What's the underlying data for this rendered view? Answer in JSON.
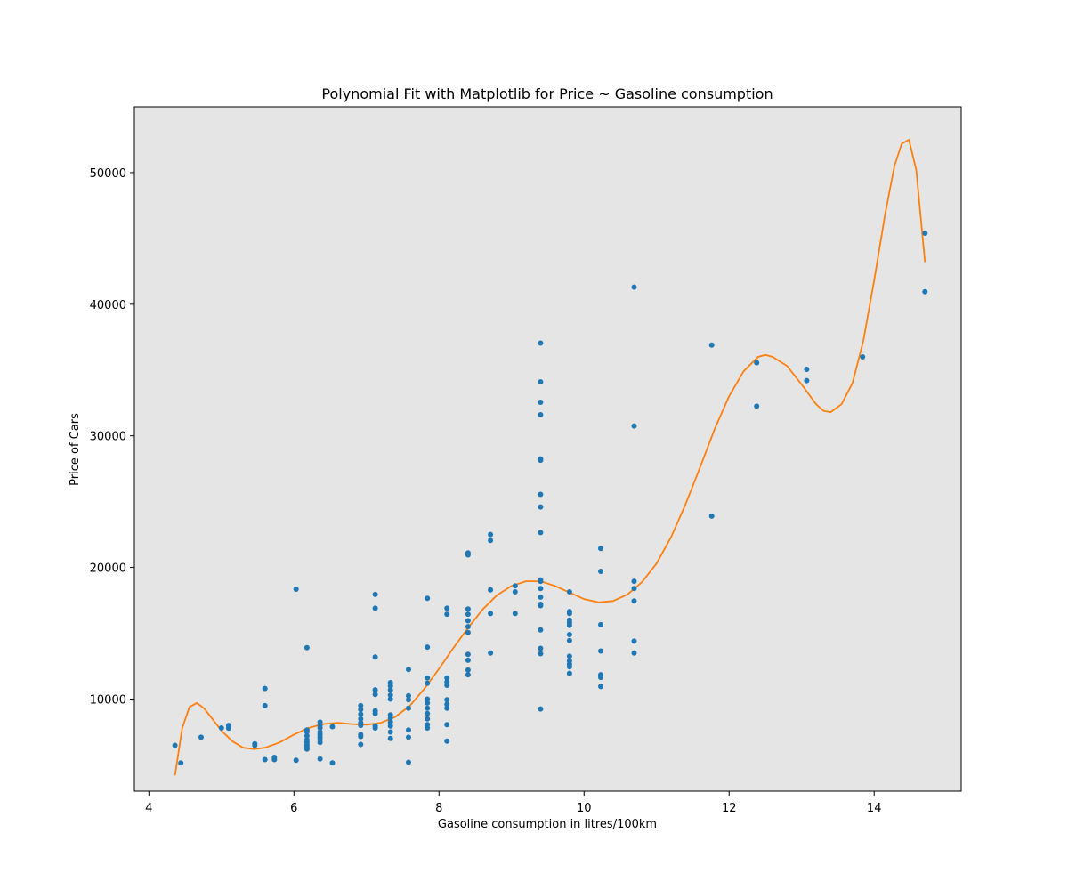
{
  "chart_data": {
    "type": "scatter",
    "title": "Polynomial Fit with Matplotlib for Price ~ Gasoline consumption",
    "xlabel": "Gasoline consumption in litres/100km",
    "ylabel": "Price of Cars",
    "xlim": [
      3.8,
      15.2
    ],
    "ylim": [
      3000,
      55000
    ],
    "xticks": [
      4,
      6,
      8,
      10,
      12,
      14
    ],
    "yticks": [
      10000,
      20000,
      30000,
      40000,
      50000
    ],
    "xtick_labels": [
      "4",
      "6",
      "8",
      "10",
      "12",
      "14"
    ],
    "ytick_labels": [
      "10000",
      "20000",
      "30000",
      "40000",
      "50000"
    ],
    "background": "#e5e5e5",
    "grid": false,
    "legend": "none",
    "series": [
      {
        "kind": "scatter",
        "color": "#1f77b4",
        "points": [
          [
            4.36,
            6480
          ],
          [
            4.44,
            5150
          ],
          [
            4.72,
            7100
          ],
          [
            5.0,
            7800
          ],
          [
            5.1,
            7780
          ],
          [
            5.1,
            8000
          ],
          [
            5.46,
            6480
          ],
          [
            5.46,
            6600
          ],
          [
            5.6,
            5400
          ],
          [
            5.6,
            9500
          ],
          [
            5.6,
            10800
          ],
          [
            5.73,
            5400
          ],
          [
            5.73,
            5570
          ],
          [
            6.03,
            5350
          ],
          [
            6.03,
            18350
          ],
          [
            6.18,
            6200
          ],
          [
            6.18,
            6330
          ],
          [
            6.18,
            6500
          ],
          [
            6.18,
            6700
          ],
          [
            6.18,
            6900
          ],
          [
            6.18,
            7200
          ],
          [
            6.18,
            7500
          ],
          [
            6.18,
            7650
          ],
          [
            6.18,
            13900
          ],
          [
            6.36,
            5450
          ],
          [
            6.36,
            6700
          ],
          [
            6.36,
            6900
          ],
          [
            6.36,
            7100
          ],
          [
            6.36,
            7300
          ],
          [
            6.36,
            7500
          ],
          [
            6.36,
            7800
          ],
          [
            6.36,
            8000
          ],
          [
            6.36,
            8250
          ],
          [
            6.53,
            5150
          ],
          [
            6.53,
            7900
          ],
          [
            6.92,
            6550
          ],
          [
            6.92,
            7150
          ],
          [
            6.92,
            7300
          ],
          [
            6.92,
            8000
          ],
          [
            6.92,
            8200
          ],
          [
            6.92,
            8500
          ],
          [
            6.92,
            8850
          ],
          [
            6.92,
            9200
          ],
          [
            6.92,
            9500
          ],
          [
            7.12,
            7800
          ],
          [
            7.12,
            7950
          ],
          [
            7.12,
            8900
          ],
          [
            7.12,
            9100
          ],
          [
            7.12,
            10350
          ],
          [
            7.12,
            10700
          ],
          [
            7.12,
            13200
          ],
          [
            7.12,
            16900
          ],
          [
            7.12,
            17950
          ],
          [
            7.33,
            7000
          ],
          [
            7.33,
            7500
          ],
          [
            7.33,
            7950
          ],
          [
            7.33,
            8250
          ],
          [
            7.33,
            8550
          ],
          [
            7.33,
            8800
          ],
          [
            7.33,
            10000
          ],
          [
            7.33,
            10300
          ],
          [
            7.33,
            10700
          ],
          [
            7.33,
            11000
          ],
          [
            7.33,
            11250
          ],
          [
            7.58,
            5200
          ],
          [
            7.58,
            7100
          ],
          [
            7.58,
            7650
          ],
          [
            7.58,
            9300
          ],
          [
            7.58,
            9950
          ],
          [
            7.58,
            10250
          ],
          [
            7.58,
            12250
          ],
          [
            7.84,
            7800
          ],
          [
            7.84,
            8050
          ],
          [
            7.84,
            8500
          ],
          [
            7.84,
            8900
          ],
          [
            7.84,
            9300
          ],
          [
            7.84,
            9700
          ],
          [
            7.84,
            10000
          ],
          [
            7.84,
            11200
          ],
          [
            7.84,
            11600
          ],
          [
            7.84,
            13950
          ],
          [
            7.84,
            17650
          ],
          [
            8.11,
            6800
          ],
          [
            8.11,
            8050
          ],
          [
            8.11,
            9300
          ],
          [
            8.11,
            9600
          ],
          [
            8.11,
            9950
          ],
          [
            8.11,
            11050
          ],
          [
            8.11,
            11300
          ],
          [
            8.11,
            11600
          ],
          [
            8.11,
            16450
          ],
          [
            8.11,
            16900
          ],
          [
            8.4,
            11850
          ],
          [
            8.4,
            12200
          ],
          [
            8.4,
            12950
          ],
          [
            8.4,
            13400
          ],
          [
            8.4,
            15050
          ],
          [
            8.4,
            15500
          ],
          [
            8.4,
            15950
          ],
          [
            8.4,
            16450
          ],
          [
            8.4,
            16850
          ],
          [
            8.4,
            20950
          ],
          [
            8.4,
            21100
          ],
          [
            8.71,
            13500
          ],
          [
            8.71,
            16500
          ],
          [
            8.71,
            18300
          ],
          [
            8.71,
            22050
          ],
          [
            8.71,
            22500
          ],
          [
            9.05,
            16500
          ],
          [
            9.05,
            18150
          ],
          [
            9.05,
            18600
          ],
          [
            9.4,
            9250
          ],
          [
            9.4,
            13450
          ],
          [
            9.4,
            13850
          ],
          [
            9.4,
            15250
          ],
          [
            9.4,
            17100
          ],
          [
            9.4,
            17200
          ],
          [
            9.4,
            17750
          ],
          [
            9.4,
            18400
          ],
          [
            9.4,
            18950
          ],
          [
            9.4,
            19050
          ],
          [
            9.4,
            22650
          ],
          [
            9.4,
            24600
          ],
          [
            9.4,
            25550
          ],
          [
            9.4,
            28150
          ],
          [
            9.4,
            28250
          ],
          [
            9.4,
            31600
          ],
          [
            9.4,
            32550
          ],
          [
            9.4,
            34100
          ],
          [
            9.4,
            37050
          ],
          [
            9.8,
            11950
          ],
          [
            9.8,
            12450
          ],
          [
            9.8,
            12650
          ],
          [
            9.8,
            12900
          ],
          [
            9.8,
            13250
          ],
          [
            9.8,
            14450
          ],
          [
            9.8,
            14900
          ],
          [
            9.8,
            15600
          ],
          [
            9.8,
            15800
          ],
          [
            9.8,
            16000
          ],
          [
            9.8,
            16500
          ],
          [
            9.8,
            16650
          ],
          [
            9.8,
            18150
          ],
          [
            10.23,
            10950
          ],
          [
            10.23,
            11650
          ],
          [
            10.23,
            11850
          ],
          [
            10.23,
            13650
          ],
          [
            10.23,
            15650
          ],
          [
            10.23,
            19700
          ],
          [
            10.23,
            21450
          ],
          [
            10.69,
            13500
          ],
          [
            10.69,
            14400
          ],
          [
            10.69,
            17450
          ],
          [
            10.69,
            18400
          ],
          [
            10.69,
            18950
          ],
          [
            10.69,
            30750
          ],
          [
            10.69,
            41300
          ],
          [
            11.76,
            23900
          ],
          [
            11.76,
            36900
          ],
          [
            12.38,
            32250
          ],
          [
            12.38,
            35550
          ],
          [
            13.07,
            34200
          ],
          [
            13.07,
            35050
          ],
          [
            13.84,
            36000
          ],
          [
            14.7,
            40950
          ],
          [
            14.7,
            45400
          ]
        ]
      },
      {
        "kind": "line",
        "color": "#ff7f0e",
        "points": [
          [
            4.36,
            4200
          ],
          [
            4.46,
            7800
          ],
          [
            4.56,
            9400
          ],
          [
            4.66,
            9700
          ],
          [
            4.76,
            9300
          ],
          [
            4.86,
            8600
          ],
          [
            5.0,
            7600
          ],
          [
            5.15,
            6800
          ],
          [
            5.3,
            6300
          ],
          [
            5.45,
            6200
          ],
          [
            5.6,
            6300
          ],
          [
            5.8,
            6700
          ],
          [
            6.0,
            7300
          ],
          [
            6.2,
            7800
          ],
          [
            6.4,
            8100
          ],
          [
            6.6,
            8200
          ],
          [
            6.8,
            8100
          ],
          [
            7.0,
            8050
          ],
          [
            7.2,
            8200
          ],
          [
            7.4,
            8650
          ],
          [
            7.6,
            9500
          ],
          [
            7.8,
            10800
          ],
          [
            8.0,
            12300
          ],
          [
            8.2,
            13900
          ],
          [
            8.4,
            15400
          ],
          [
            8.6,
            16800
          ],
          [
            8.8,
            17900
          ],
          [
            9.0,
            18600
          ],
          [
            9.2,
            18950
          ],
          [
            9.4,
            18950
          ],
          [
            9.6,
            18600
          ],
          [
            9.8,
            18100
          ],
          [
            10.0,
            17600
          ],
          [
            10.2,
            17350
          ],
          [
            10.4,
            17450
          ],
          [
            10.6,
            17950
          ],
          [
            10.8,
            18900
          ],
          [
            11.0,
            20300
          ],
          [
            11.2,
            22300
          ],
          [
            11.4,
            24800
          ],
          [
            11.6,
            27600
          ],
          [
            11.8,
            30500
          ],
          [
            12.0,
            33000
          ],
          [
            12.2,
            34900
          ],
          [
            12.4,
            36000
          ],
          [
            12.5,
            36150
          ],
          [
            12.6,
            36000
          ],
          [
            12.8,
            35300
          ],
          [
            13.0,
            33900
          ],
          [
            13.2,
            32400
          ],
          [
            13.3,
            31900
          ],
          [
            13.4,
            31800
          ],
          [
            13.55,
            32400
          ],
          [
            13.7,
            34000
          ],
          [
            13.85,
            37200
          ],
          [
            14.0,
            41800
          ],
          [
            14.15,
            46800
          ],
          [
            14.28,
            50500
          ],
          [
            14.38,
            52200
          ],
          [
            14.48,
            52500
          ],
          [
            14.58,
            50200
          ],
          [
            14.7,
            43200
          ]
        ]
      }
    ]
  }
}
